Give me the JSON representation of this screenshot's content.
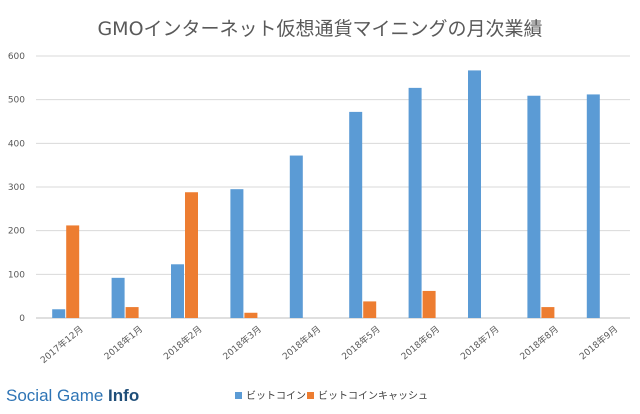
{
  "chart_data": {
    "type": "bar",
    "title": "GMOインターネット仮想通貨マイニングの月次業績",
    "categories": [
      "2017年12月",
      "2018年1月",
      "2018年2月",
      "2018年3月",
      "2018年4月",
      "2018年5月",
      "2018年6月",
      "2018年7月",
      "2018年8月",
      "2018年9月"
    ],
    "series": [
      {
        "name": "ビットコイン",
        "color": "#5b9bd5",
        "values": [
          20,
          92,
          123,
          295,
          372,
          472,
          527,
          567,
          509,
          512
        ]
      },
      {
        "name": "ビットコインキャッシュ",
        "color": "#ed7d31",
        "values": [
          212,
          25,
          288,
          12,
          0,
          38,
          62,
          0,
          25,
          0
        ]
      }
    ],
    "yticks": [
      0,
      100,
      200,
      300,
      400,
      500,
      600
    ],
    "ylim": [
      0,
      600
    ],
    "grid": true,
    "legend": "bottom",
    "xlabel": "",
    "ylabel": ""
  },
  "watermark": {
    "part1": "Social Game ",
    "part2": "Info"
  }
}
